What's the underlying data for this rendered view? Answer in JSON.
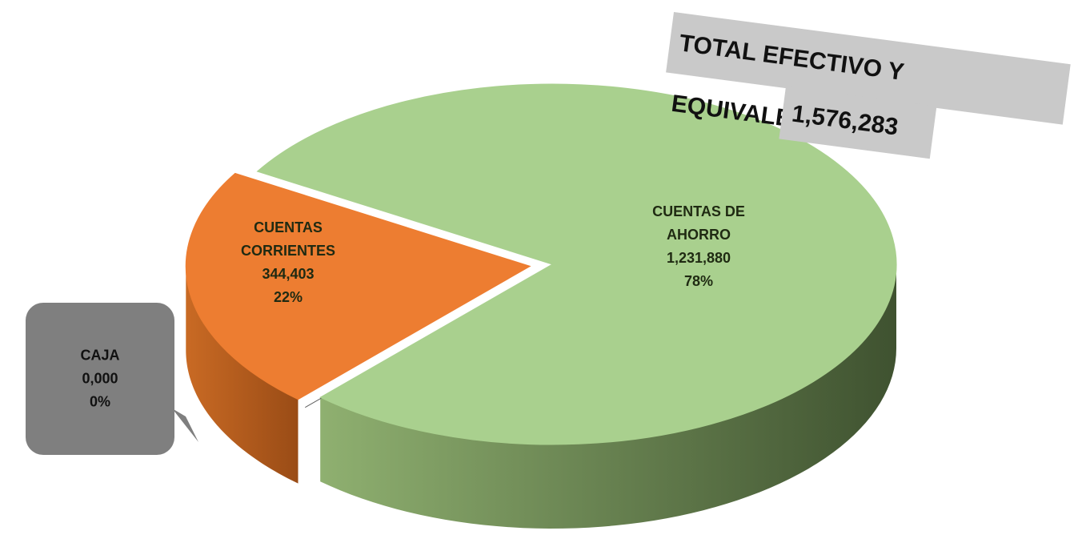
{
  "chart_data": {
    "type": "pie",
    "categories": [
      "CAJA",
      "CUENTAS CORRIENTES",
      "CUENTAS DE AHORRO"
    ],
    "values": [
      0,
      344403,
      1231880
    ],
    "value_labels": [
      "0,000",
      "344,403",
      "1,231,880"
    ],
    "percent_labels": [
      "0%",
      "22%",
      "78%"
    ],
    "colors": [
      "#595959",
      "#ed7d31",
      "#a9d08e"
    ],
    "annotation": {
      "title": "TOTAL EFECTIVO Y EQUIVALENTES",
      "total": "1,576,283"
    }
  }
}
